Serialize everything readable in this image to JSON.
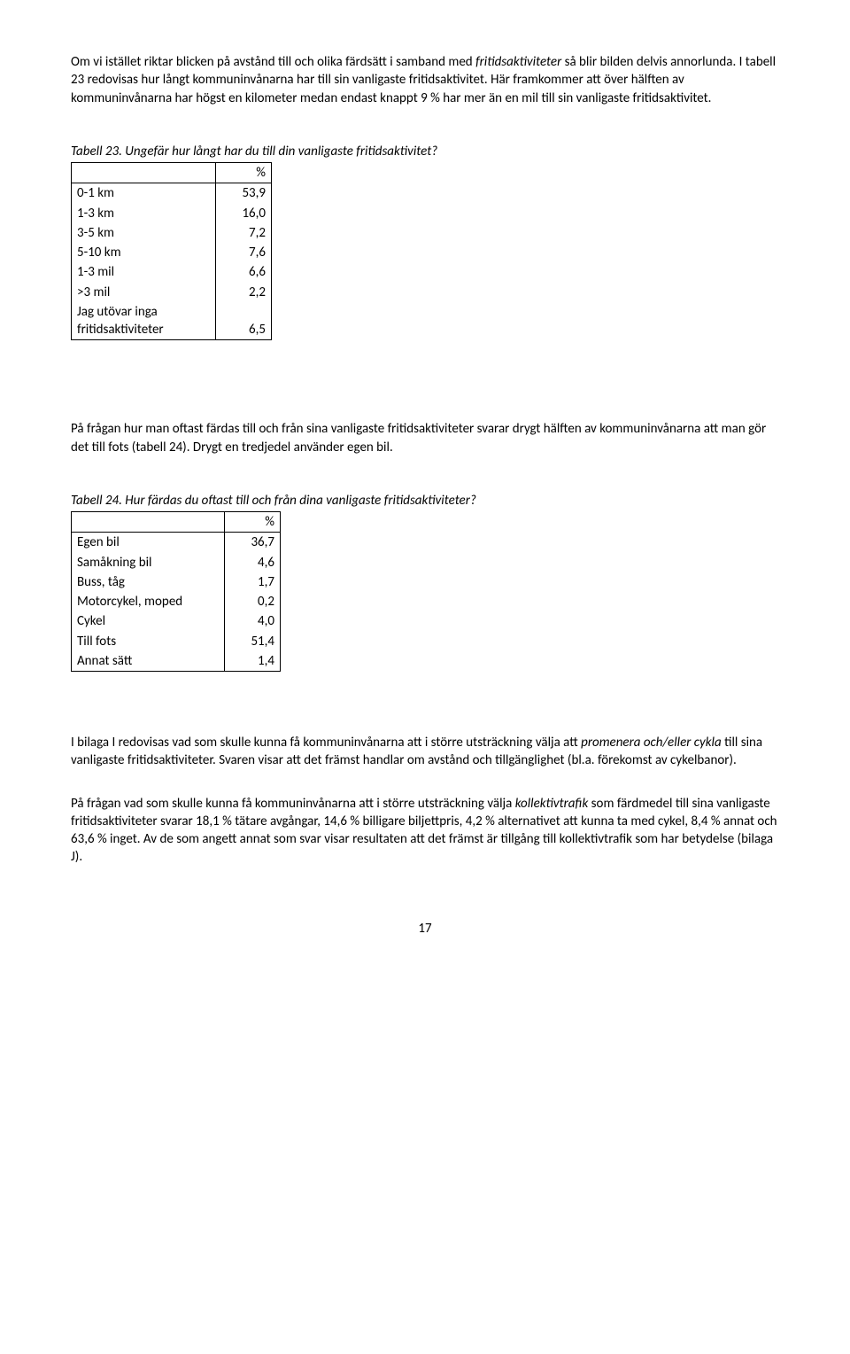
{
  "para1_a": "Om vi istället riktar blicken på avstånd till och olika färdsätt i samband med ",
  "para1_b": "fritidsaktiviteter",
  "para1_c": " så blir bilden delvis annorlunda. I tabell 23 redovisas hur långt kommuninvånarna har till sin vanligaste fritidsaktivitet. Här framkommer att över hälften av kommuninvånarna har högst en kilometer medan endast knappt 9 % har mer än en mil till sin vanligaste fritidsaktivitet.",
  "table23": {
    "caption": "Tabell 23. Ungefär hur långt har du till din vanligaste fritidsaktivitet?",
    "header_pct": "%",
    "rows": [
      {
        "label": "0-1 km",
        "val": "53,9"
      },
      {
        "label": "1-3 km",
        "val": "16,0"
      },
      {
        "label": "3-5 km",
        "val": "7,2"
      },
      {
        "label": "5-10 km",
        "val": "7,6"
      },
      {
        "label": "1-3 mil",
        "val": "6,6"
      },
      {
        "label": ">3 mil",
        "val": "2,2"
      }
    ],
    "last_label_l1": "Jag utövar inga",
    "last_label_l2": "fritidsaktiviteter",
    "last_val": "6,5"
  },
  "para2": "På frågan hur man oftast färdas till och från sina vanligaste fritidsaktiviteter svarar drygt hälften av kommuninvånarna att man gör det till fots (tabell 24). Drygt en tredjedel använder egen bil.",
  "table24": {
    "caption": "Tabell 24. Hur färdas du oftast till och från dina vanligaste fritidsaktiviteter?",
    "header_pct": "%",
    "rows": [
      {
        "label": "Egen bil",
        "val": "36,7"
      },
      {
        "label": "Samåkning bil",
        "val": "4,6"
      },
      {
        "label": "Buss, tåg",
        "val": "1,7"
      },
      {
        "label": "Motorcykel, moped",
        "val": "0,2"
      },
      {
        "label": "Cykel",
        "val": "4,0"
      },
      {
        "label": "Till fots",
        "val": "51,4"
      },
      {
        "label": "Annat sätt",
        "val": "1,4"
      }
    ]
  },
  "para3_a": "I bilaga I redovisas vad som skulle kunna få kommuninvånarna att i större utsträckning välja att ",
  "para3_b": "promenera och/eller cykla",
  "para3_c": " till sina vanligaste fritidsaktiviteter. Svaren visar att det främst handlar om avstånd och tillgänglighet (bl.a. förekomst av cykelbanor).",
  "para4_a": "På frågan vad som skulle kunna få kommuninvånarna att i större utsträckning välja ",
  "para4_b": "kollektivtrafik",
  "para4_c": " som färdmedel till sina vanligaste fritidsaktiviteter svarar 18,1 % tätare avgångar, 14,6 % billigare biljettpris, 4,2 % alternativet att kunna ta med cykel, 8,4 % annat och 63,6 % inget. Av de som angett annat som svar visar resultaten att det främst är tillgång till kollektivtrafik som har betydelse (bilaga J).",
  "page_number": "17"
}
